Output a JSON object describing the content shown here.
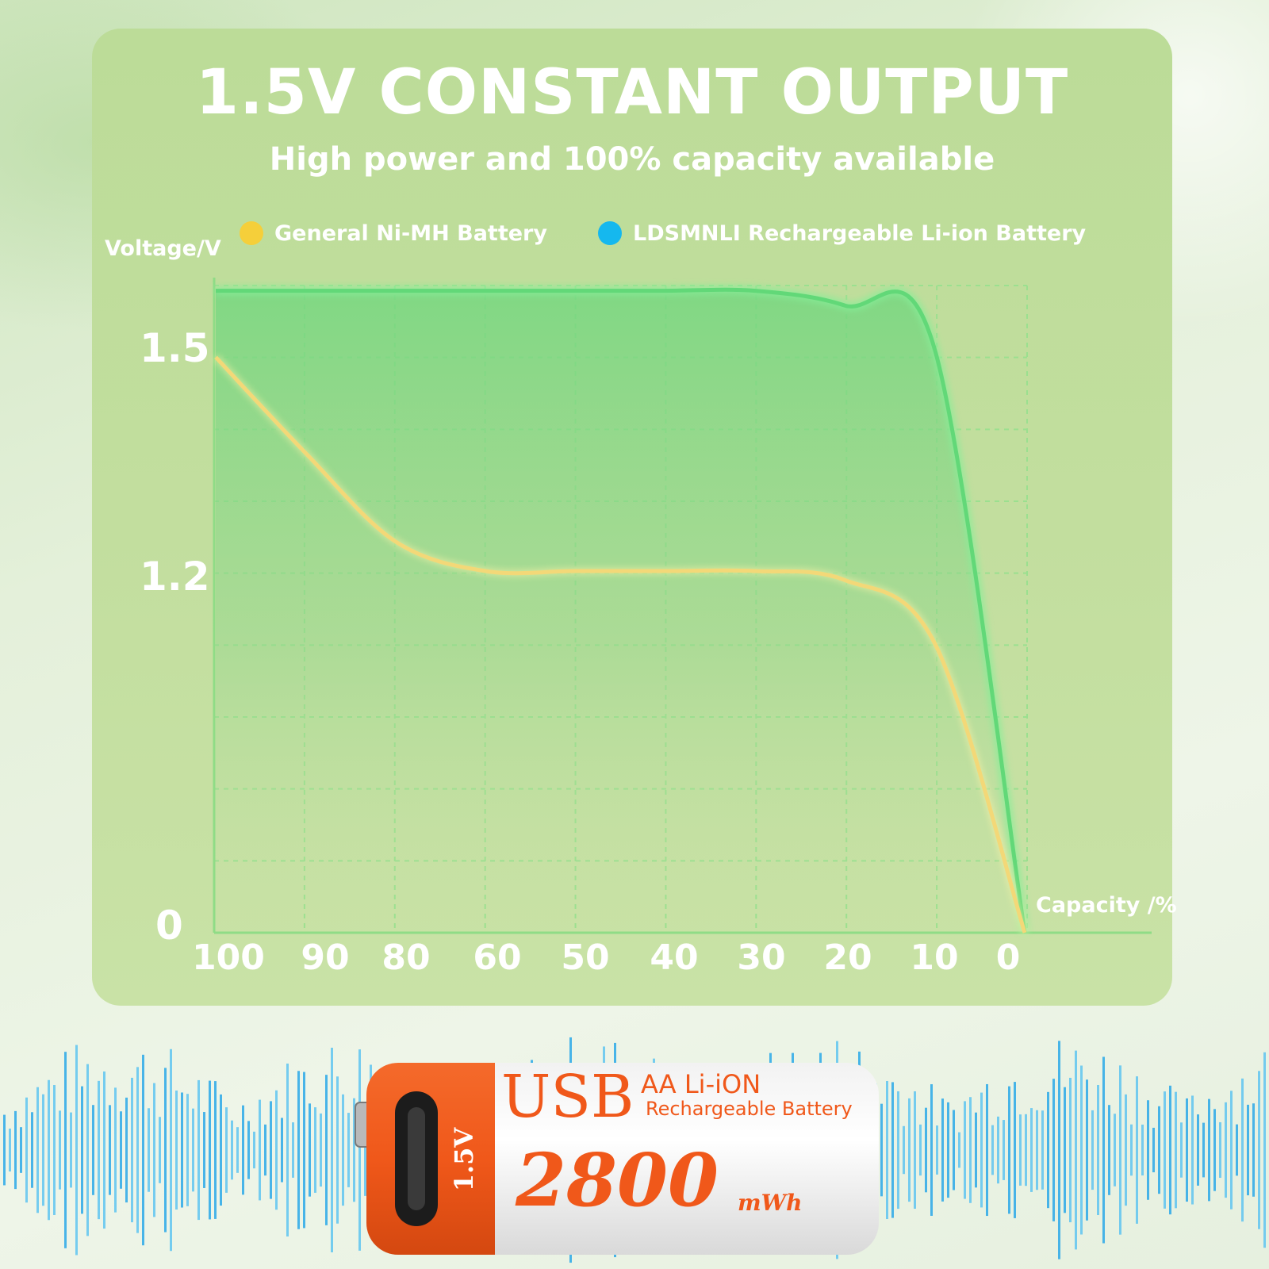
{
  "header": {
    "title": "1.5V CONSTANT OUTPUT",
    "subtitle": "High power and 100% capacity available"
  },
  "chart_data": {
    "type": "line",
    "xlabel": "Capacity /%",
    "ylabel": "Voltage/V",
    "x_tick_labels": [
      "100",
      "90",
      "80",
      "60",
      "50",
      "40",
      "30",
      "20",
      "10",
      "0"
    ],
    "y_tick_labels": [
      "1.5",
      "1.2",
      "0"
    ],
    "grid": true,
    "legend_position": "top",
    "series": [
      {
        "name": "General Ni-MH Battery",
        "color": "#f5cf3a",
        "x": [
          "100",
          "90",
          "80",
          "60",
          "50",
          "40",
          "30",
          "20",
          "10",
          "0"
        ],
        "y": [
          1.49,
          1.36,
          1.24,
          1.2,
          1.2,
          1.2,
          1.2,
          1.17,
          0.96,
          0
        ]
      },
      {
        "name": "LDSMNLI Rechargeable Li-ion Battery",
        "color": "#15b8ee",
        "x": [
          "100",
          "90",
          "80",
          "60",
          "50",
          "40",
          "30",
          "20",
          "10",
          "0"
        ],
        "y": [
          1.58,
          1.58,
          1.58,
          1.58,
          1.58,
          1.58,
          1.58,
          1.56,
          1.5,
          0
        ]
      }
    ]
  },
  "product": {
    "brand_line": "USB",
    "type_line": "AA Li-iON",
    "desc_line": "Rechargeable Battery",
    "voltage_label": "1.5V",
    "capacity_value": "2800",
    "capacity_unit": "mWh"
  },
  "colors": {
    "accent_orange": "#f0581a",
    "li_ion_curve": "#62d878"
  }
}
